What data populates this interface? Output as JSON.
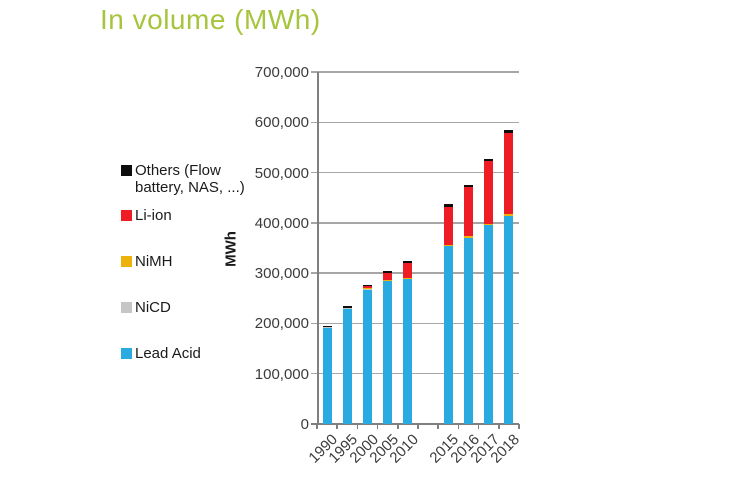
{
  "title": "In volume (MWh)",
  "title_color": "#a6c43c",
  "legend": {
    "items": [
      {
        "label": "Others (Flow battery, NAS, ...)",
        "color": "#0d0d0d"
      },
      {
        "label": "Li-ion",
        "color": "#ee1c25"
      },
      {
        "label": "NiMH",
        "color": "#edb30b"
      },
      {
        "label": "NiCD",
        "color": "#c6c6c6"
      },
      {
        "label": "Lead Acid",
        "color": "#29abe2"
      }
    ]
  },
  "chart_data": {
    "type": "bar",
    "stacked": true,
    "title": "In volume (MWh)",
    "xlabel": "",
    "ylabel": "MWh",
    "ylim": [
      0,
      700000
    ],
    "ytick_step": 100000,
    "grid": true,
    "legend_position": "left",
    "categories": [
      "1990",
      "1995",
      "2000",
      "2005",
      "2010",
      "",
      "2015",
      "2016",
      "2017",
      "2018"
    ],
    "series": [
      {
        "name": "Lead Acid",
        "color": "#29abe2",
        "values": [
          190000,
          228000,
          267000,
          285000,
          288000,
          null,
          354000,
          370000,
          396000,
          413000
        ]
      },
      {
        "name": "NiCD",
        "color": "#c6c6c6",
        "values": [
          2000,
          2000,
          1000,
          0,
          0,
          null,
          0,
          0,
          0,
          0
        ]
      },
      {
        "name": "NiMH",
        "color": "#edb30b",
        "values": [
          0,
          0,
          3000,
          1000,
          3000,
          null,
          2000,
          3000,
          2000,
          5000
        ]
      },
      {
        "name": "Li-ion",
        "color": "#ee1c25",
        "values": [
          0,
          0,
          3000,
          15000,
          30000,
          null,
          76000,
          99000,
          125000,
          160000
        ]
      },
      {
        "name": "Others (Flow battery, NAS, ...)",
        "color": "#0d0d0d",
        "values": [
          3000,
          4000,
          3000,
          3000,
          4000,
          null,
          5000,
          3000,
          4000,
          7000
        ]
      }
    ],
    "totals": [
      195000,
      234000,
      277000,
      304000,
      325000,
      null,
      437000,
      475000,
      527000,
      585000
    ]
  }
}
